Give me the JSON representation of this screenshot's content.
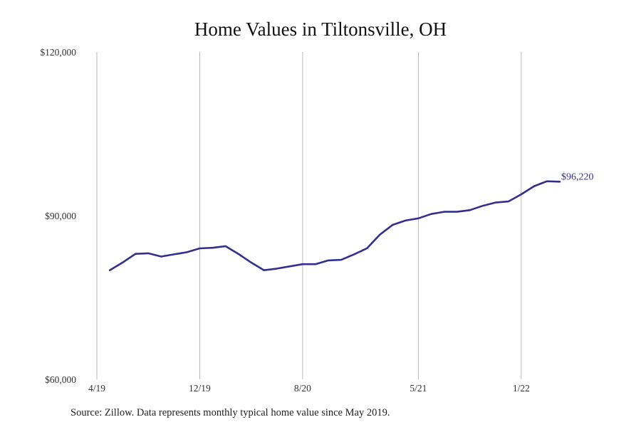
{
  "chart_data": {
    "type": "line",
    "title": "Home Values in Tiltonsville, OH",
    "xlabel": "",
    "ylabel": "",
    "y_ticks": [
      {
        "value": 60000,
        "label": "$60,000"
      },
      {
        "value": 90000,
        "label": "$90,000"
      },
      {
        "value": 120000,
        "label": "$120,000"
      }
    ],
    "ylim": [
      60000,
      120000
    ],
    "x_ticks": [
      {
        "index": 0,
        "label": "4/19"
      },
      {
        "index": 8,
        "label": "12/19"
      },
      {
        "index": 16,
        "label": "8/20"
      },
      {
        "index": 25,
        "label": "5/21"
      },
      {
        "index": 33,
        "label": "1/22"
      }
    ],
    "xlim": [
      0,
      36
    ],
    "grid": "vertical at x ticks",
    "series": [
      {
        "color": "#32308f",
        "x": [
          1,
          2,
          3,
          4,
          5,
          6,
          7,
          8,
          9,
          10,
          11,
          12,
          13,
          14,
          15,
          16,
          17,
          18,
          19,
          20,
          21,
          22,
          23,
          24,
          25,
          26,
          27,
          28,
          29,
          30,
          31,
          32,
          33,
          34,
          35,
          36
        ],
        "values": [
          80000,
          81400,
          83000,
          83100,
          82500,
          82900,
          83300,
          84000,
          84100,
          84400,
          83000,
          81400,
          80000,
          80300,
          80700,
          81100,
          81100,
          81800,
          81900,
          82900,
          84000,
          86500,
          88300,
          89100,
          89500,
          90300,
          90700,
          90700,
          91000,
          91800,
          92400,
          92600,
          93900,
          95400,
          96300,
          96220
        ],
        "end_label": "$96,220"
      }
    ]
  },
  "footer": {
    "source": "Source: Zillow. Data represents monthly typical home value since May 2019."
  }
}
